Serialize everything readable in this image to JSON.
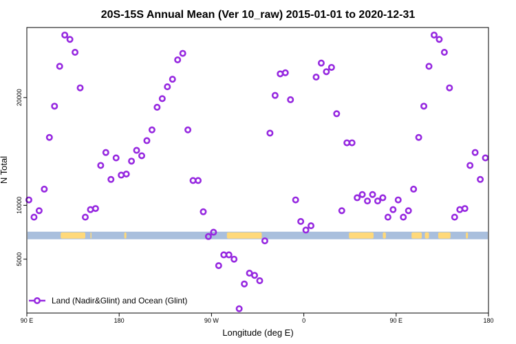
{
  "chart_data": {
    "type": "scatter",
    "title": "20S-15S Annual Mean (Ver 10_raw)   2015-01-01 to 2020-12-31",
    "xlabel": "Longitude (deg E)",
    "ylabel": "N Total",
    "xlim": [
      90,
      540
    ],
    "ylim": [
      0,
      26500
    ],
    "x_ticks": [
      {
        "value": 90,
        "label": "90 E"
      },
      {
        "value": 180,
        "label": "180"
      },
      {
        "value": 270,
        "label": "90 W"
      },
      {
        "value": 360,
        "label": "0"
      },
      {
        "value": 450,
        "label": "90 E"
      },
      {
        "value": 540,
        "label": "180"
      }
    ],
    "y_ticks": [
      {
        "value": 5000,
        "label": "5000"
      },
      {
        "value": 10000,
        "label": "10000"
      },
      {
        "value": 20000,
        "label": "20000"
      }
    ],
    "grid": false,
    "legend_position": "bottom-left",
    "surface_band": {
      "y": 7200,
      "ocean_color": "#a9bfdd",
      "land_color": "#ffd97a",
      "land_segments": [
        [
          123,
          147
        ],
        [
          152,
          153
        ],
        [
          185,
          187
        ],
        [
          285,
          319
        ],
        [
          404,
          428
        ],
        [
          437,
          440
        ],
        [
          465,
          475
        ],
        [
          478,
          482
        ],
        [
          491,
          503
        ],
        [
          518,
          520
        ]
      ]
    },
    "series": [
      {
        "name": "Land (Nadir&Glint) and Ocean (Glint)",
        "color": "#9628e0",
        "points": [
          [
            92,
            10500
          ],
          [
            97,
            8900
          ],
          [
            102,
            9500
          ],
          [
            107,
            11500
          ],
          [
            112,
            16300
          ],
          [
            117,
            19200
          ],
          [
            122,
            22900
          ],
          [
            127,
            25800
          ],
          [
            132,
            25400
          ],
          [
            137,
            24200
          ],
          [
            142,
            20900
          ],
          [
            147,
            8900
          ],
          [
            152,
            9600
          ],
          [
            157,
            9700
          ],
          [
            162,
            13700
          ],
          [
            167,
            14900
          ],
          [
            172,
            12400
          ],
          [
            177,
            14400
          ],
          [
            182,
            12800
          ],
          [
            187,
            12900
          ],
          [
            192,
            14100
          ],
          [
            197,
            15100
          ],
          [
            202,
            14600
          ],
          [
            207,
            16000
          ],
          [
            212,
            17000
          ],
          [
            217,
            19100
          ],
          [
            222,
            19900
          ],
          [
            227,
            21000
          ],
          [
            232,
            21700
          ],
          [
            237,
            23500
          ],
          [
            242,
            24100
          ],
          [
            247,
            17000
          ],
          [
            252,
            12300
          ],
          [
            257,
            12300
          ],
          [
            262,
            9400
          ],
          [
            267,
            7100
          ],
          [
            272,
            7500
          ],
          [
            277,
            4400
          ],
          [
            282,
            5400
          ],
          [
            287,
            5400
          ],
          [
            292,
            5000
          ],
          [
            297,
            400
          ],
          [
            302,
            2700
          ],
          [
            307,
            3700
          ],
          [
            312,
            3500
          ],
          [
            317,
            3000
          ],
          [
            322,
            6700
          ],
          [
            327,
            16700
          ],
          [
            332,
            20200
          ],
          [
            337,
            22200
          ],
          [
            342,
            22300
          ],
          [
            347,
            19800
          ],
          [
            352,
            10500
          ],
          [
            357,
            8500
          ],
          [
            362,
            7700
          ],
          [
            367,
            8100
          ],
          [
            372,
            21900
          ],
          [
            377,
            23200
          ],
          [
            382,
            22400
          ],
          [
            387,
            22800
          ],
          [
            392,
            18500
          ],
          [
            397,
            9500
          ],
          [
            402,
            15800
          ],
          [
            407,
            15800
          ],
          [
            412,
            10700
          ],
          [
            417,
            11000
          ],
          [
            422,
            10400
          ],
          [
            427,
            11000
          ],
          [
            432,
            10400
          ],
          [
            437,
            10700
          ],
          [
            442,
            8900
          ],
          [
            447,
            9600
          ],
          [
            452,
            10500
          ],
          [
            457,
            8900
          ],
          [
            462,
            9500
          ],
          [
            467,
            11500
          ],
          [
            472,
            16300
          ],
          [
            477,
            19200
          ],
          [
            482,
            22900
          ],
          [
            487,
            25800
          ],
          [
            492,
            25400
          ],
          [
            497,
            24200
          ],
          [
            502,
            20900
          ],
          [
            507,
            8900
          ],
          [
            512,
            9600
          ],
          [
            517,
            9700
          ],
          [
            522,
            13700
          ],
          [
            527,
            14900
          ],
          [
            532,
            12400
          ],
          [
            537,
            14400
          ]
        ]
      }
    ]
  }
}
